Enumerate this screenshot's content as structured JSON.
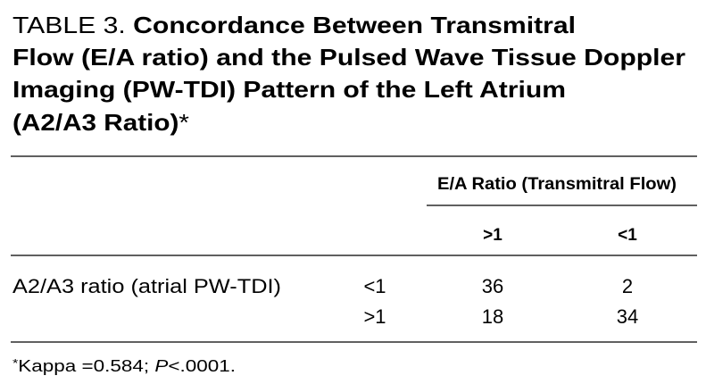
{
  "title": {
    "label": "TABLE 3.",
    "lines": [
      "Concordance Between Transmitral",
      "Flow (E/A ratio) and the Pulsed Wave Tissue Doppler",
      "Imaging (PW-TDI) Pattern of the Left Atrium",
      "(A2/A3 Ratio)"
    ],
    "marker": "*"
  },
  "table": {
    "group_header": "E/A Ratio (Transmitral Flow)",
    "columns": [
      ">1",
      "<1"
    ],
    "row_label": "A2/A3 ratio (atrial PW-TDI)",
    "rows": [
      {
        "label": "<1",
        "values": [
          36,
          2
        ]
      },
      {
        "label": ">1",
        "values": [
          18,
          34
        ]
      }
    ]
  },
  "footnote": {
    "marker": "*",
    "text": "Kappa =0.584; ",
    "p": "P",
    "rest": "<.0001."
  }
}
